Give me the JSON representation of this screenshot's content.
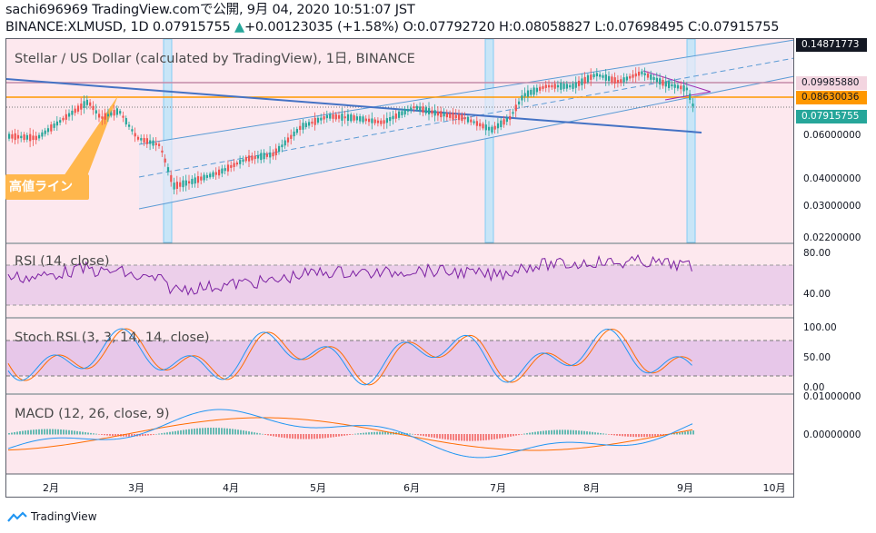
{
  "header": {
    "line1": "sachi696969 TradingView.comで公開, 9月 04, 2020 10:51:07 JST",
    "symbol": "BINANCE:XLMUSD, 1D 0.07915755",
    "up_arrow": "▲",
    "change": "+0.00123035 (+1.58%)",
    "ohlc": "O:0.07792720 H:0.08058827 L:0.07698495 C:0.07915755"
  },
  "panes": {
    "price_title": "Stellar / US Dollar (calculated by TradingView), 1日, BINANCE",
    "rsi_title": "RSI (14, close)",
    "stoch_title": "Stoch RSI (3, 3, 14, 14, close)",
    "macd_title": "MACD (12, 26, close, 9)"
  },
  "annotation": {
    "label": "高値ライン",
    "color": "#ffb74d"
  },
  "price_axis": {
    "ticks": [
      "0.06000000",
      "0.04000000",
      "0.03000000",
      "0.02200000"
    ],
    "top_tag": "0.14871773",
    "tags": [
      {
        "text": "0.09985880",
        "bg": "#f3d5e0",
        "fg": "#131722"
      },
      {
        "text": "0.08630036",
        "bg": "#ff9800",
        "fg": "#131722"
      },
      {
        "text": "0.07915755",
        "bg": "#26a69a",
        "fg": "#ffffff"
      }
    ]
  },
  "rsi_axis": [
    "80.00",
    "40.00"
  ],
  "stoch_axis": [
    "100.00",
    "50.00",
    "0.00"
  ],
  "macd_axis": [
    "0.01000000",
    "0.00000000"
  ],
  "months": [
    "2月",
    "3月",
    "4月",
    "5月",
    "6月",
    "7月",
    "8月",
    "9月",
    "10月"
  ],
  "colors": {
    "bull": "#26a69a",
    "bear": "#ef5350",
    "rsi": "#7b1fa2",
    "stoch_k": "#2196f3",
    "stoch_d": "#ff6d00",
    "macd": "#2196f3",
    "signal": "#ff6d00",
    "channel": "#5b9bd5",
    "resistance": "#ff9800",
    "pane_bg": "#fde8ee"
  },
  "brand": "TradingView"
}
